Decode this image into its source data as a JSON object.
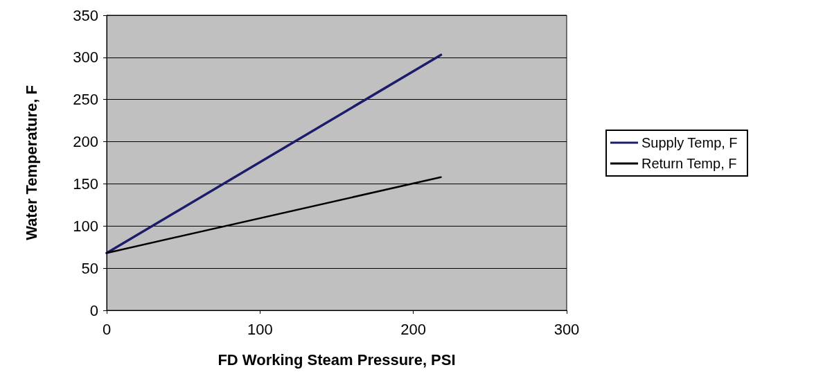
{
  "chart_data": {
    "type": "line",
    "xlabel": "FD Working Steam Pressure, PSI",
    "ylabel": "Water Temperature, F",
    "x": [
      0,
      218
    ],
    "series": [
      {
        "name": "Supply Temp, F",
        "color": "#1c1c6b",
        "values": [
          68,
          303
        ]
      },
      {
        "name": "Return Temp, F",
        "color": "#000000",
        "values": [
          68,
          158
        ]
      }
    ],
    "xlim": [
      0,
      300
    ],
    "xticks": [
      0,
      100,
      200,
      300
    ],
    "ylim": [
      0,
      350
    ],
    "yticks": [
      0,
      50,
      100,
      150,
      200,
      250,
      300,
      350
    ],
    "grid": "y",
    "legend": "right",
    "marker": "none",
    "line_style": "solid"
  }
}
